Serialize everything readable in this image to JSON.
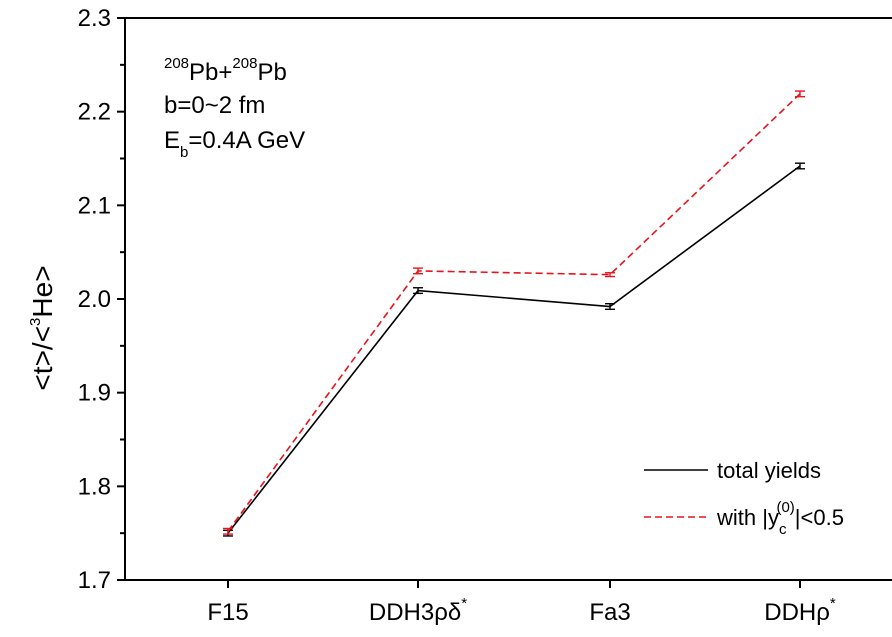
{
  "chart_data": {
    "type": "line",
    "categories": [
      "F15",
      "DDH3ρδ*",
      "Fa3",
      "DDHρ*"
    ],
    "category_labels": [
      {
        "base": "F15",
        "sup": ""
      },
      {
        "base": "DDH3ρδ",
        "sup": "*"
      },
      {
        "base": "Fa3",
        "sup": ""
      },
      {
        "base": "DDHρ",
        "sup": "*"
      }
    ],
    "ylabel": "<t>/<3He>",
    "ylabel_parts": {
      "pre": "<t>/<",
      "sup": "3",
      "post": "He>"
    },
    "ylim": [
      1.7,
      2.3
    ],
    "yticks": [
      "1.7",
      "1.8",
      "1.9",
      "2.0",
      "2.1",
      "2.2",
      "2.3"
    ],
    "grid": false,
    "legend_position": "bottom-right",
    "annotations": {
      "system": {
        "sup1": "208",
        "a": "Pb+",
        "sup2": "208",
        "b": "Pb"
      },
      "impact": "b=0~2 fm",
      "energy": {
        "pre": "E",
        "sub": "b",
        "post": "=0.4A GeV"
      }
    },
    "series": [
      {
        "name": "total yields",
        "color": "#000000",
        "dash": "solid",
        "values": [
          1.75,
          2.009,
          1.992,
          2.142
        ],
        "errors": [
          0.003,
          0.003,
          0.003,
          0.003
        ]
      },
      {
        "name": "with |yc(0)|<0.5",
        "legend_parts": {
          "pre": "with |y",
          "sub": "c",
          "sup": "(0)",
          "post": "|<0.5"
        },
        "color": "#e8141c",
        "dash": "dashed",
        "values": [
          1.752,
          2.03,
          2.026,
          2.219
        ],
        "errors": [
          0.003,
          0.003,
          0.002,
          0.003
        ]
      }
    ]
  }
}
